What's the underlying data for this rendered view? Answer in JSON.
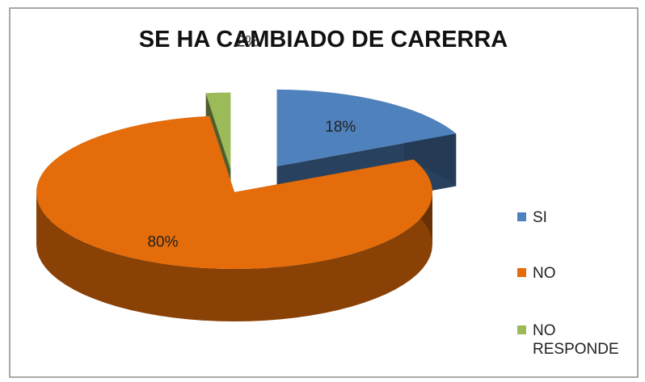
{
  "chart_data": {
    "type": "pie3d",
    "title": "SE HA CAMBIADO DE CARERRA",
    "categories": [
      "SI",
      "NO",
      "NO RESPONDE"
    ],
    "values": [
      18,
      80,
      2
    ],
    "value_labels": [
      "18%",
      "80%",
      "2%"
    ],
    "colors": [
      "#4f81bd",
      "#e46c0a",
      "#9bbb59"
    ],
    "legend": "right"
  }
}
